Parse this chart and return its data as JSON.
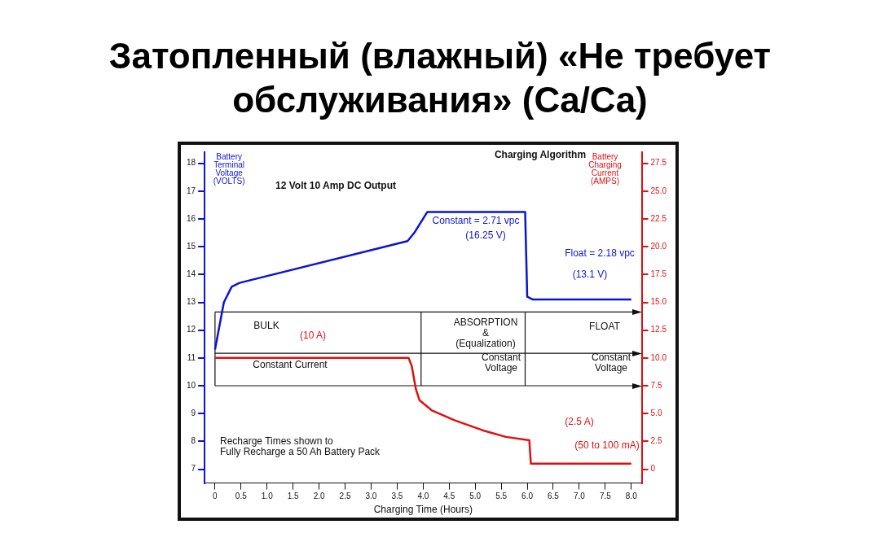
{
  "chart_data": {
    "type": "line",
    "title": "Затопленный (влажный) «Не требует обслуживания» (Ca/Ca)",
    "xlabel": "Charging Time (Hours)",
    "ylabel": "Battery Terminal Voltage (VOLTS)",
    "y2label": "Battery Charging Current (AMPS)",
    "xlim": [
      -0.2,
      8.2
    ],
    "xticks": [
      {
        "value": 0,
        "label": "0"
      },
      {
        "value": 0.5,
        "label": "0.5"
      },
      {
        "value": 1,
        "label": "1.0"
      },
      {
        "value": 1.5,
        "label": "1.5"
      },
      {
        "value": 2,
        "label": "2.0"
      },
      {
        "value": 2.5,
        "label": "2.5"
      },
      {
        "value": 3,
        "label": "3.0"
      },
      {
        "value": 3.5,
        "label": "3.5"
      },
      {
        "value": 4,
        "label": "4.0"
      },
      {
        "value": 4.5,
        "label": "4.5"
      },
      {
        "value": 5,
        "label": "5.0"
      },
      {
        "value": 5.5,
        "label": "5.5"
      },
      {
        "value": 6,
        "label": "6.0"
      },
      {
        "value": 6.5,
        "label": "6.5"
      },
      {
        "value": 7,
        "label": "7.0"
      },
      {
        "value": 7.5,
        "label": "7.5"
      },
      {
        "value": 8,
        "label": "8.0"
      }
    ],
    "ylim": [
      6.5,
      18.4
    ],
    "yticks": [
      7,
      8,
      9,
      10,
      11,
      12,
      13,
      14,
      15,
      16,
      17,
      18
    ],
    "y2lim": [
      -1.25,
      28.5
    ],
    "y2ticks": [
      0,
      {
        "value": 2.5,
        "label": "2.5"
      },
      {
        "value": 5,
        "label": "5.0"
      },
      {
        "value": 7.5,
        "label": "7.5"
      },
      {
        "value": 10,
        "label": "10.0"
      },
      {
        "value": 12.5,
        "label": "12.5"
      },
      {
        "value": 15,
        "label": "15.0"
      },
      {
        "value": 17.5,
        "label": "17.5"
      },
      {
        "value": 20,
        "label": "20.0"
      },
      {
        "value": 22.5,
        "label": "22.5"
      },
      {
        "value": 25,
        "label": "25.0"
      },
      {
        "value": 27.5,
        "label": "27.5"
      }
    ],
    "grid": false,
    "ref_lines": [
      {
        "axis": "y",
        "value": 12.65,
        "color": "#111111"
      },
      {
        "axis": "y",
        "value": 11.17,
        "color": "#111111"
      },
      {
        "axis": "y",
        "value": 10.0,
        "color": "#111111"
      },
      {
        "axis": "x",
        "value": 0,
        "color": "#111111"
      },
      {
        "axis": "x",
        "value": 3.96,
        "color": "#111111"
      },
      {
        "axis": "x",
        "value": 5.96,
        "color": "#111111"
      }
    ],
    "legend": false,
    "marker": "none",
    "line_style": "solid",
    "series": [
      {
        "color": "#0a14d2",
        "x": [
          0,
          0.17,
          0.32,
          0.47,
          3.7,
          3.83,
          4.08,
          5.96,
          6.0,
          6.11,
          8
        ],
        "values": [
          11.3,
          13.0,
          13.56,
          13.7,
          15.2,
          15.5,
          16.25,
          16.25,
          13.2,
          13.1,
          13.1
        ]
      },
      {
        "color": "#e01010",
        "axis": "y2",
        "x": [
          0,
          3.72,
          3.78,
          3.86,
          3.93,
          4.16,
          4.6,
          5.14,
          5.59,
          6.04,
          6.07,
          8
        ],
        "values": [
          10,
          10,
          9.3,
          7.2,
          6.2,
          5.3,
          4.4,
          3.5,
          2.9,
          2.6,
          0.5,
          0.5
        ]
      }
    ],
    "annotations": [
      "Charging Algorithm",
      "12 Volt 10 Amp DC Output",
      "Constant = 2.71 vpc",
      "(16.25 V)",
      "Float = 2.18 vpc",
      "(13.1 V)",
      "BULK",
      "(10 A)",
      "ABSORPTION\n&\n(Equalization)",
      "FLOAT",
      "Constant Current",
      "Constant\nVoltage",
      "Constant\nVoltage",
      "(2.5 A)",
      "(50 to 100 mA)",
      "Recharge Times shown to\nFully Recharge a 50 Ah Battery Pack"
    ]
  }
}
